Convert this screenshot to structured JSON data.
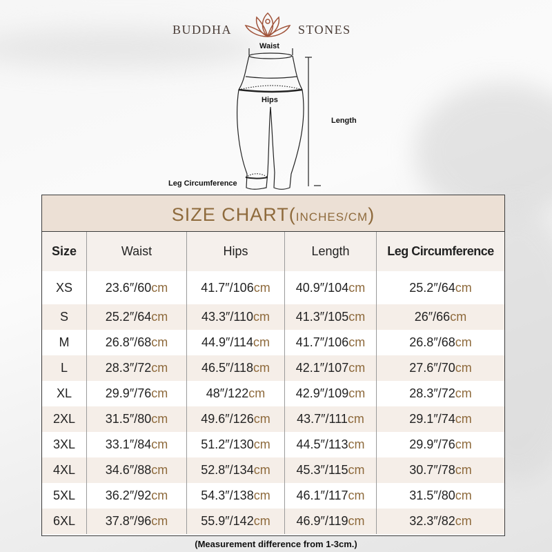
{
  "brand": {
    "left": "BUDDHA",
    "right": "STONES"
  },
  "diagram": {
    "waist": "Waist",
    "hips": "Hips",
    "length": "Length",
    "leg": "Leg Circumference"
  },
  "table": {
    "title": "SIZE CHART(",
    "title_unit": "INCHES/CM",
    "title_close": ")",
    "headers": [
      "Size",
      "Waist",
      "Hips",
      "Length",
      "Leg Circumference"
    ],
    "unit": "cm",
    "rows": [
      {
        "size": "XS",
        "cells": [
          "23.6″/60",
          "41.7″/106",
          "40.9″/104",
          "25.2″/64"
        ]
      },
      {
        "size": "S",
        "cells": [
          "25.2″/64",
          "43.3″/110",
          "41.3″/105",
          "26″/66"
        ]
      },
      {
        "size": "M",
        "cells": [
          "26.8″/68",
          "44.9″/114",
          "41.7″/106",
          "26.8″/68"
        ]
      },
      {
        "size": "L",
        "cells": [
          "28.3″/72",
          "46.5″/118",
          "42.1″/107",
          "27.6″/70"
        ]
      },
      {
        "size": "XL",
        "cells": [
          "29.9″/76",
          "48″/122",
          "42.9″/109",
          "28.3″/72"
        ]
      },
      {
        "size": "2XL",
        "cells": [
          "31.5″/80",
          "49.6″/126",
          "43.7″/111",
          "29.1″/74"
        ]
      },
      {
        "size": "3XL",
        "cells": [
          "33.1″/84",
          "51.2″/130",
          "44.5″/113",
          "29.9″/76"
        ]
      },
      {
        "size": "4XL",
        "cells": [
          "34.6″/88",
          "52.8″/134",
          "45.3″/115",
          "30.7″/78"
        ]
      },
      {
        "size": "5XL",
        "cells": [
          "36.2″/92",
          "54.3″/138",
          "46.1″/117",
          "31.5″/80"
        ]
      },
      {
        "size": "6XL",
        "cells": [
          "37.8″/96",
          "55.9″/142",
          "46.9″/119",
          "32.3″/82"
        ]
      }
    ]
  },
  "note": "(Measurement difference from 1-3cm.)",
  "colors": {
    "accent": "#8e6a3c",
    "header_bg": "#ece0d5",
    "alt_row": "#f5eee8"
  }
}
